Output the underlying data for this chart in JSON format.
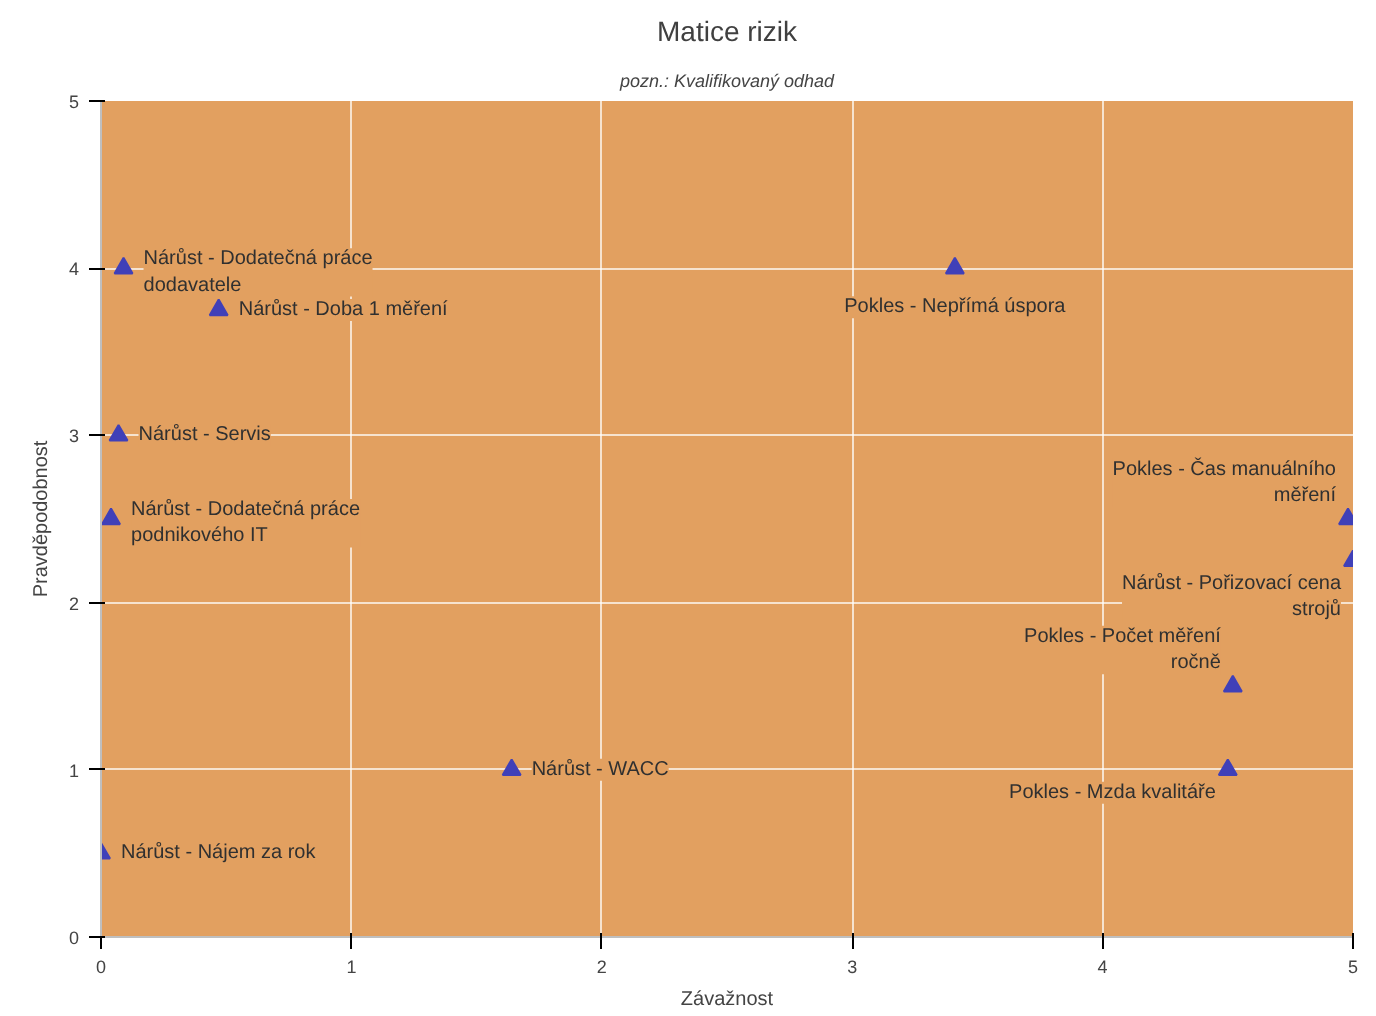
{
  "chart_data": {
    "type": "scatter",
    "title": "Matice rizik",
    "xlabel": "Závažnost",
    "ylabel": "Pravděpodobnost",
    "x": [
      0.09,
      0.47,
      0.07,
      0.04,
      0.0,
      1.64,
      3.41,
      4.98,
      5.0,
      4.52,
      4.5
    ],
    "values": [
      4,
      3.75,
      3,
      2.5,
      0.5,
      1,
      4,
      2.5,
      2.25,
      1.5,
      1
    ],
    "color": "#4040b8",
    "marker": "triangle",
    "grid": true,
    "xlim": [
      0,
      5
    ],
    "ylim": [
      0,
      5
    ],
    "xticks": [
      0,
      1,
      2,
      3,
      4,
      5
    ],
    "yticks": [
      0,
      1,
      2,
      3,
      4,
      5
    ],
    "annotations": [
      {
        "text": "Nárůst - Dodatečná práce\ndodavatele",
        "x": 0.09,
        "y": 4
      },
      {
        "text": "Nárůst - Doba 1 měření",
        "x": 0.47,
        "y": 3.75
      },
      {
        "text": "Nárůst - Servis",
        "x": 0.07,
        "y": 3
      },
      {
        "text": "Nárůst - Dodatečná práce\npodnikového  IT",
        "x": 0.04,
        "y": 2.5
      },
      {
        "text": "Nárůst - Nájem za rok",
        "x": 0.0,
        "y": 0.5
      },
      {
        "text": "Nárůst - WACC",
        "x": 1.64,
        "y": 1
      },
      {
        "text": "Pokles - Nepřímá úspora",
        "x": 3.41,
        "y": 4
      },
      {
        "text": "Pokles - Čas manuálního\nměření",
        "x": 4.98,
        "y": 2.5
      },
      {
        "text": "Nárůst - Pořizovací cena\nstrojů",
        "x": 5.0,
        "y": 2.25
      },
      {
        "text": "Pokles - Počet měření\nročně",
        "x": 4.52,
        "y": 1.5
      },
      {
        "text": "Pokles - Mzda kvalitáře",
        "x": 4.5,
        "y": 1
      },
      "pozn.: Kvalifikovaný odhad"
    ]
  }
}
